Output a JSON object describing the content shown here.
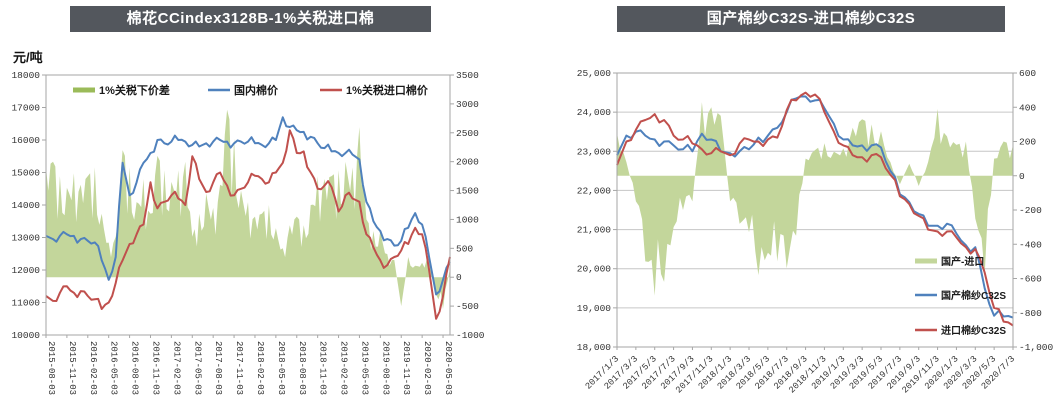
{
  "colors": {
    "title_bar_bg": "#53575d",
    "title_text": "#ffffff",
    "axis_line": "#a6a6a6",
    "grid_line": "#c6c6c6",
    "tick_text": "#333333",
    "area_green": "#c3d69b",
    "legend_green": "#9bbb59",
    "line_blue": "#4f81bd",
    "line_red": "#c0504d"
  },
  "chart_data": [
    {
      "type": "line",
      "subtype": "dual-axis line + area combo",
      "title": "棉花CCindex3128B-1%关税进口棉",
      "legend_position": "top",
      "grid": false,
      "left_axis": {
        "label": "元/吨",
        "min": 10000,
        "max": 18000,
        "step": 1000,
        "tick_labels": [
          "10000",
          "11000",
          "12000",
          "13000",
          "14000",
          "15000",
          "16000",
          "17000",
          "18000"
        ]
      },
      "right_axis": {
        "min": -1000,
        "max": 3500,
        "step": 500,
        "tick_labels": [
          "-1000",
          "-500",
          "0",
          "500",
          "1000",
          "1500",
          "2000",
          "2500",
          "3000",
          "3500"
        ]
      },
      "x": [
        "2015-08",
        "2015-09",
        "2015-10",
        "2015-11",
        "2015-12",
        "2016-01",
        "2016-02",
        "2016-03",
        "2016-04",
        "2016-05",
        "2016-06",
        "2016-07",
        "2016-08",
        "2016-09",
        "2016-10",
        "2016-11",
        "2016-12",
        "2017-01",
        "2017-02",
        "2017-03",
        "2017-04",
        "2017-05",
        "2017-06",
        "2017-07",
        "2017-08",
        "2017-09",
        "2017-10",
        "2017-11",
        "2017-12",
        "2018-01",
        "2018-02",
        "2018-03",
        "2018-04",
        "2018-05",
        "2018-06",
        "2018-07",
        "2018-08",
        "2018-09",
        "2018-10",
        "2018-11",
        "2018-12",
        "2019-01",
        "2019-02",
        "2019-03",
        "2019-04",
        "2019-05",
        "2019-06",
        "2019-07",
        "2019-08",
        "2019-09",
        "2019-10",
        "2019-11",
        "2019-12",
        "2020-01",
        "2020-02",
        "2020-03",
        "2020-04",
        "2020-05",
        "2020-06"
      ],
      "x_tick_every": 3,
      "x_tick_labels": [
        "2015-08-03",
        "2015-11-03",
        "2016-02-03",
        "2016-05-03",
        "2016-08-03",
        "2016-11-03",
        "2017-02-03",
        "2017-05-03",
        "2017-08-03",
        "2017-11-03",
        "2018-02-03",
        "2018-05-03",
        "2018-08-03",
        "2018-11-03",
        "2019-02-03",
        "2019-05-03",
        "2019-08-03",
        "2019-11-03",
        "2020-02-03",
        "2020-05-03"
      ],
      "series": [
        {
          "key": "tariff-spread-area",
          "name": "1%关税下价差",
          "type": "area",
          "axis": "right",
          "color": "#c3d69b",
          "legend_color": "#9bbb59",
          "values": [
            1900,
            2000,
            1750,
            1550,
            1800,
            1600,
            1750,
            1900,
            1100,
            600,
            700,
            2200,
            1900,
            1300,
            1700,
            1100,
            2100,
            1850,
            1650,
            1850,
            2000,
            700,
            1100,
            1450,
            1200,
            1600,
            2900,
            2400,
            1500,
            1300,
            1050,
            1100,
            1250,
            850,
            500,
            900,
            1050,
            900,
            1250,
            1750,
            1700,
            1750,
            1850,
            2000,
            1900,
            2600,
            1000,
            800,
            800,
            400,
            300,
            -500,
            350,
            200,
            250,
            400,
            -300,
            -550,
            150
          ]
        },
        {
          "key": "domestic-cotton-line",
          "name": "国内棉价",
          "type": "line",
          "axis": "left",
          "color": "#4f81bd",
          "legend_color": "#4f81bd",
          "values": [
            13050,
            12950,
            13050,
            13100,
            13050,
            12950,
            12900,
            12850,
            12300,
            11700,
            12400,
            15300,
            14300,
            14700,
            15300,
            15600,
            16000,
            15900,
            15950,
            16000,
            15950,
            15850,
            15800,
            15900,
            15950,
            16000,
            15950,
            15900,
            15950,
            15950,
            15900,
            15850,
            15900,
            16000,
            16700,
            16400,
            16300,
            16250,
            16100,
            15900,
            15750,
            15650,
            15600,
            15600,
            15550,
            15400,
            14100,
            13500,
            13200,
            12950,
            12750,
            12900,
            13300,
            13750,
            13400,
            12400,
            11250,
            11700,
            12250
          ]
        },
        {
          "key": "import-cotton-line",
          "name": "1%关税进口棉价",
          "type": "line",
          "axis": "left",
          "color": "#c0504d",
          "legend_color": "#c0504d",
          "values": [
            11200,
            11050,
            11300,
            11500,
            11300,
            11350,
            11200,
            11100,
            10800,
            11000,
            11600,
            12300,
            12800,
            13100,
            13400,
            14700,
            13900,
            14100,
            14300,
            14200,
            14000,
            15500,
            14800,
            14400,
            14700,
            15000,
            14600,
            14300,
            14500,
            14700,
            14900,
            14800,
            14700,
            15000,
            15300,
            16300,
            15600,
            15650,
            15000,
            14500,
            14600,
            14550,
            13800,
            14300,
            14200,
            14100,
            13100,
            12700,
            12300,
            12150,
            12400,
            12600,
            12800,
            13300,
            13100,
            12000,
            10500,
            11200,
            12400
          ]
        }
      ]
    },
    {
      "type": "line",
      "subtype": "dual-axis line + area combo",
      "title": "国产棉纱C32S-进口棉纱C32S",
      "legend_position": "bottom-right",
      "grid": true,
      "left_axis": {
        "label": "",
        "min": 18000,
        "max": 25000,
        "step": 1000,
        "tick_labels": [
          "18,000",
          "19,000",
          "20,000",
          "21,000",
          "22,000",
          "23,000",
          "24,000",
          "25,000"
        ]
      },
      "right_axis": {
        "min": -1000,
        "max": 600,
        "step": 200,
        "tick_labels": [
          "-1,000",
          "-800",
          "-600",
          "-400",
          "-200",
          "0",
          "200",
          "400",
          "600"
        ]
      },
      "x": [
        "2017-01",
        "2017-02",
        "2017-03",
        "2017-04",
        "2017-05",
        "2017-06",
        "2017-07",
        "2017-08",
        "2017-09",
        "2017-10",
        "2017-11",
        "2017-12",
        "2018-01",
        "2018-02",
        "2018-03",
        "2018-04",
        "2018-05",
        "2018-06",
        "2018-07",
        "2018-08",
        "2018-09",
        "2018-10",
        "2018-11",
        "2018-12",
        "2019-01",
        "2019-02",
        "2019-03",
        "2019-04",
        "2019-05",
        "2019-06",
        "2019-07",
        "2019-08",
        "2019-09",
        "2019-10",
        "2019-11",
        "2019-12",
        "2020-01",
        "2020-02",
        "2020-03",
        "2020-04",
        "2020-05",
        "2020-06",
        "2020-07"
      ],
      "x_tick_every": 2,
      "x_tick_labels": [
        "2017/1/3",
        "2017/3/3",
        "2017/5/3",
        "2017/7/3",
        "2017/9/3",
        "2017/11/3",
        "2018/1/3",
        "2018/3/3",
        "2018/5/3",
        "2018/7/3",
        "2018/9/3",
        "2018/11/3",
        "2019/1/3",
        "2019/3/3",
        "2019/5/3",
        "2019/7/3",
        "2019/9/3",
        "2019/11/3",
        "2020/1/3",
        "2020/3/3",
        "2020/5/3",
        "2020/7/3"
      ],
      "series": [
        {
          "key": "yarn-spread-area",
          "name": "国产-进口",
          "type": "area",
          "axis": "right",
          "color": "#c3d69b",
          "legend_color": "#c3d69b",
          "values": [
            250,
            80,
            -150,
            -500,
            -700,
            -620,
            -300,
            -200,
            -150,
            430,
            400,
            350,
            -150,
            -280,
            -330,
            -580,
            -450,
            -500,
            -540,
            -350,
            100,
            150,
            190,
            140,
            160,
            280,
            330,
            300,
            260,
            80,
            -50,
            70,
            -60,
            80,
            390,
            230,
            180,
            200,
            -250,
            -580,
            100,
            200,
            180
          ]
        },
        {
          "key": "domestic-yarn-line",
          "name": "国产棉纱C32S",
          "type": "line",
          "axis": "left",
          "color": "#4f81bd",
          "legend_color": "#4f81bd",
          "values": [
            22900,
            23400,
            23500,
            23400,
            23300,
            23250,
            23150,
            23050,
            23000,
            23450,
            23300,
            23000,
            22950,
            23000,
            23050,
            23350,
            23400,
            23600,
            24000,
            24350,
            24400,
            24300,
            24100,
            23700,
            23300,
            23150,
            23150,
            23150,
            23100,
            22500,
            21900,
            21700,
            21400,
            21100,
            21100,
            21150,
            20900,
            20600,
            20550,
            19500,
            18800,
            18780,
            18750
          ]
        },
        {
          "key": "import-yarn-line",
          "name": "进口棉纱C32S",
          "type": "line",
          "axis": "left",
          "color": "#c0504d",
          "legend_color": "#c0504d",
          "values": [
            22650,
            23250,
            23550,
            23800,
            23950,
            23800,
            23400,
            23300,
            23200,
            23050,
            22950,
            23000,
            22900,
            23200,
            23300,
            23250,
            23300,
            23350,
            24050,
            24300,
            24500,
            24450,
            24000,
            23500,
            23150,
            22900,
            22850,
            22900,
            22850,
            22400,
            21850,
            21650,
            21350,
            21000,
            20950,
            20950,
            20800,
            20550,
            20500,
            19900,
            19000,
            18650,
            18550
          ]
        }
      ]
    }
  ]
}
